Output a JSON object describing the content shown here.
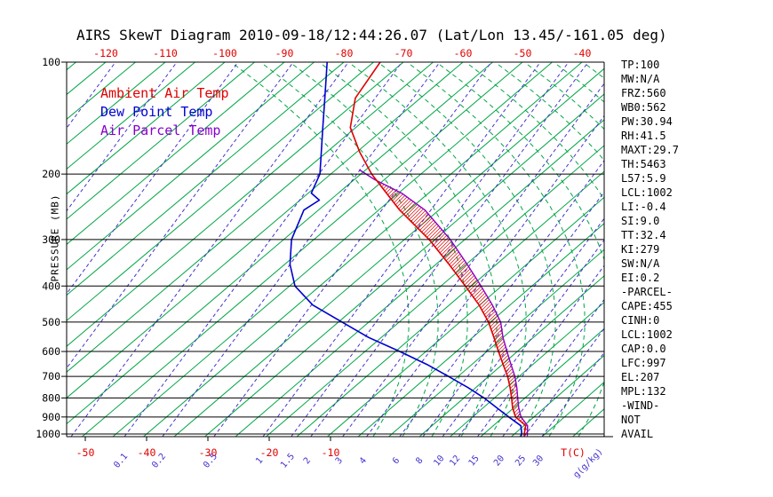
{
  "title": "AIRS SkewT Diagram 2010-09-18/12:44:26.07 (Lat/Lon 13.45/-161.05 deg)",
  "colors": {
    "grid_green": "#00a545",
    "mixing_purple": "#4433cc",
    "ambient_red": "#e00000",
    "dewpoint_blue": "#0000d0",
    "parcel_purple": "#8800cc",
    "hatch": "#dd0000",
    "frame": "#000000"
  },
  "legend": {
    "items": [
      {
        "label": "Ambient Air Temp",
        "color": "#e00000"
      },
      {
        "label": "Dew Point Temp",
        "color": "#0000d0"
      },
      {
        "label": "Air Parcel Temp",
        "color": "#8800cc"
      }
    ]
  },
  "axes": {
    "pressure_axis_label": "PRESSURE (MB)",
    "pressure_ticks": [
      100,
      200,
      300,
      400,
      500,
      600,
      700,
      800,
      900,
      1000
    ],
    "top_temperature_ticks_c": [
      -120,
      -110,
      -100,
      -90,
      -80,
      -70,
      -60,
      -50,
      -40
    ],
    "bottom_temperature_ticks_c": [
      -50,
      -40,
      -30,
      -20,
      -10
    ],
    "temperature_unit_label": "T(C)",
    "mixing_ratio_unit_label": "g(g/kg)",
    "mixing_ratio_lines": [
      {
        "label": "0.1",
        "anchor_temp_c": -43.3
      },
      {
        "label": "0.2",
        "anchor_temp_c": -37.1
      },
      {
        "label": "0.5",
        "anchor_temp_c": -28.7
      },
      {
        "label": "1",
        "anchor_temp_c": -20.7
      },
      {
        "label": "1.5",
        "anchor_temp_c": -16.1
      },
      {
        "label": "2",
        "anchor_temp_c": -12.9
      },
      {
        "label": "3",
        "anchor_temp_c": -7.7
      },
      {
        "label": "4",
        "anchor_temp_c": -3.8
      },
      {
        "label": "6",
        "anchor_temp_c": 1.6
      },
      {
        "label": "8",
        "anchor_temp_c": 5.4
      },
      {
        "label": "10",
        "anchor_temp_c": 8.6
      },
      {
        "label": "12",
        "anchor_temp_c": 11.2
      },
      {
        "label": "15",
        "anchor_temp_c": 14.3
      },
      {
        "label": "20",
        "anchor_temp_c": 18.4
      },
      {
        "label": "25",
        "anchor_temp_c": 21.9
      },
      {
        "label": "30",
        "anchor_temp_c": 24.8
      },
      {
        "label": "",
        "anchor_temp_c": -52
      },
      {
        "label": "",
        "anchor_temp_c": -61
      },
      {
        "label": "",
        "anchor_temp_c": -70
      },
      {
        "label": "",
        "anchor_temp_c": -80
      },
      {
        "label": "",
        "anchor_temp_c": -90
      },
      {
        "label": "",
        "anchor_temp_c": -100
      },
      {
        "label": "",
        "anchor_temp_c": -110
      }
    ]
  },
  "stats_panel": {
    "lines": [
      "TP:100",
      "MW:N/A",
      "FRZ:560",
      "WB0:562",
      "PW:30.94",
      "RH:41.5",
      "MAXT:29.7",
      "TH:5463",
      "L57:5.9",
      "LCL:1002",
      "LI:-0.4",
      "SI:9.0",
      "TT:32.4",
      "KI:279",
      "SW:N/A",
      "EI:0.2",
      "-PARCEL-",
      "CAPE:455",
      "CINH:0",
      "LCL:1002",
      "CAP:0.0",
      "LFC:997",
      "EL:207",
      "MPL:132",
      "-WIND-",
      "NOT",
      "AVAIL"
    ]
  },
  "chart_data": {
    "type": "line",
    "diagram": "skew-t log-p sounding",
    "x_axis": {
      "label": "Temperature (C)",
      "skewed": true,
      "top_ticks": [
        -120,
        -110,
        -100,
        -90,
        -80,
        -70,
        -60,
        -50,
        -40
      ],
      "bottom_ticks": [
        -50,
        -40,
        -30,
        -20,
        -10
      ]
    },
    "y_axis": {
      "label": "PRESSURE (MB)",
      "scale": "log",
      "range": [
        100,
        1050
      ]
    },
    "series": [
      {
        "name": "Ambient Air Temp",
        "color": "#e00000",
        "points_p_mb_t_c": [
          [
            1010,
            21.9
          ],
          [
            1000,
            21.6
          ],
          [
            950,
            20.3
          ],
          [
            900,
            17.0
          ],
          [
            850,
            14.8
          ],
          [
            800,
            12.8
          ],
          [
            750,
            10.6
          ],
          [
            700,
            8.1
          ],
          [
            650,
            5.1
          ],
          [
            600,
            1.9
          ],
          [
            550,
            -1.5
          ],
          [
            500,
            -5.3
          ],
          [
            450,
            -10.1
          ],
          [
            400,
            -16.0
          ],
          [
            350,
            -22.8
          ],
          [
            300,
            -30.9
          ],
          [
            250,
            -41.5
          ],
          [
            200,
            -53.2
          ],
          [
            175,
            -59.4
          ],
          [
            150,
            -65.9
          ],
          [
            125,
            -70.9
          ],
          [
            100,
            -73.9
          ]
        ]
      },
      {
        "name": "Dew Point Temp",
        "color": "#0000d0",
        "points_p_mb_t_c": [
          [
            1010,
            21.4
          ],
          [
            1000,
            21.2
          ],
          [
            950,
            19.5
          ],
          [
            900,
            15.9
          ],
          [
            850,
            12.2
          ],
          [
            800,
            8.3
          ],
          [
            750,
            3.7
          ],
          [
            700,
            -1.6
          ],
          [
            650,
            -7.4
          ],
          [
            600,
            -14.3
          ],
          [
            550,
            -22.1
          ],
          [
            500,
            -29.4
          ],
          [
            450,
            -37.5
          ],
          [
            400,
            -44.1
          ],
          [
            350,
            -49.1
          ],
          [
            300,
            -53.7
          ],
          [
            250,
            -57.4
          ],
          [
            235,
            -56.8
          ],
          [
            225,
            -59.5
          ],
          [
            200,
            -61.8
          ],
          [
            150,
            -70.5
          ],
          [
            125,
            -76.0
          ],
          [
            100,
            -82.8
          ]
        ]
      },
      {
        "name": "Air Parcel Temp",
        "color": "#8800cc",
        "points_p_mb_t_c": [
          [
            1010,
            22.4
          ],
          [
            1000,
            22.1
          ],
          [
            950,
            20.6
          ],
          [
            900,
            17.9
          ],
          [
            850,
            15.8
          ],
          [
            800,
            13.8
          ],
          [
            750,
            11.7
          ],
          [
            700,
            9.3
          ],
          [
            650,
            6.4
          ],
          [
            600,
            3.3
          ],
          [
            550,
            0.0
          ],
          [
            500,
            -3.3
          ],
          [
            450,
            -7.9
          ],
          [
            400,
            -13.4
          ],
          [
            350,
            -19.8
          ],
          [
            300,
            -27.4
          ],
          [
            250,
            -37.3
          ],
          [
            225,
            -44.5
          ],
          [
            207,
            -51.6
          ],
          [
            195,
            -56.0
          ]
        ]
      }
    ],
    "cape_hatch_between": [
      "Air Parcel Temp",
      "Ambient Air Temp"
    ],
    "cape_pressure_range_mb": [
      997,
      207
    ]
  }
}
